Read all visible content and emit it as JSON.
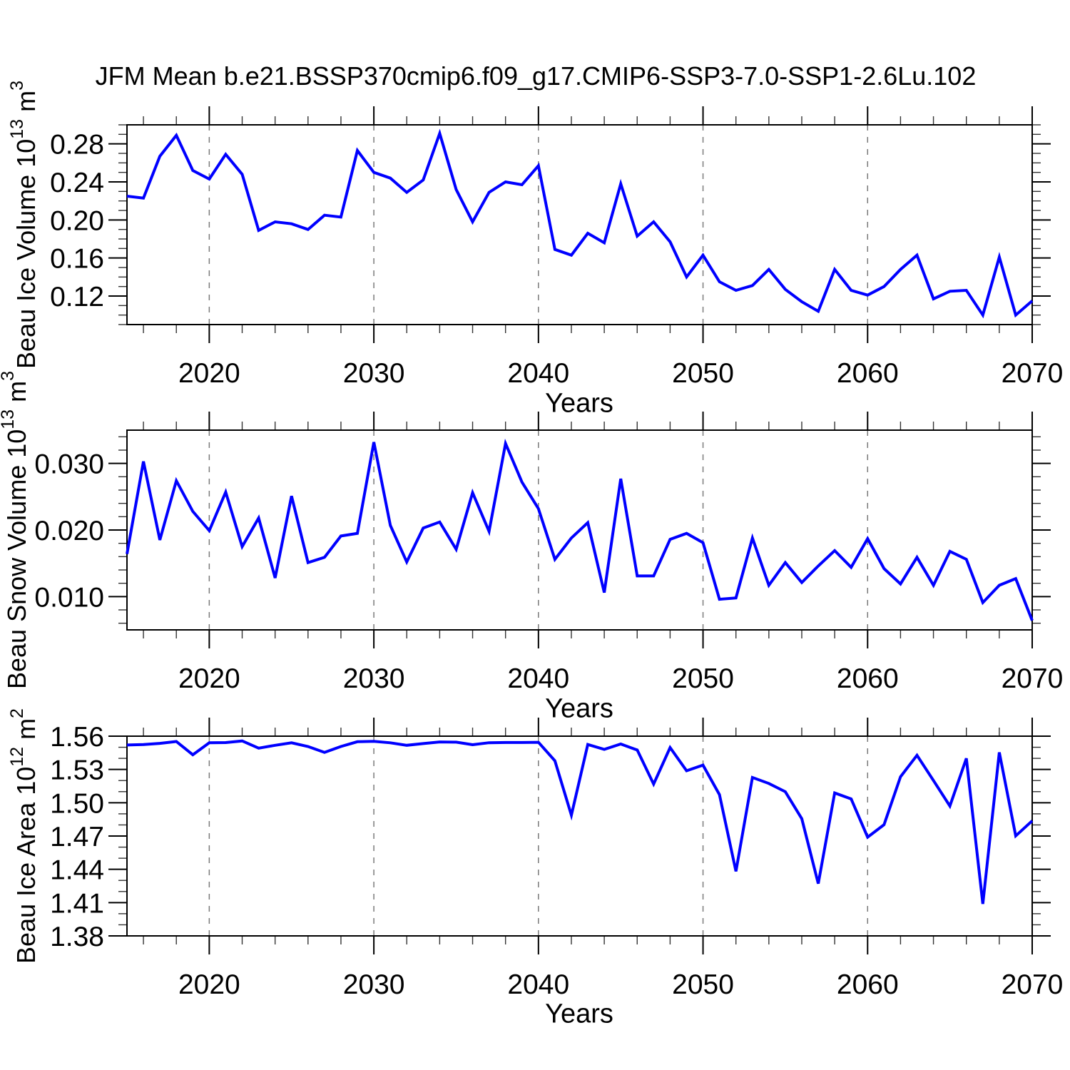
{
  "style": {
    "background": "#ffffff",
    "line_color": "#0000ff",
    "grid_color": "#7a7a7a",
    "axis_color": "#000000"
  },
  "chart_data": {
    "type": "line",
    "title": "JFM Mean b.e21.BSSP370cmip6.f09_g17.CMIP6-SSP3-7.0-SSP1-2.6Lu.102",
    "xlabel": "Years",
    "legend": null,
    "grid": "dashed vertical gridlines at decades",
    "x": [
      2015,
      2016,
      2017,
      2018,
      2019,
      2020,
      2021,
      2022,
      2023,
      2024,
      2025,
      2026,
      2027,
      2028,
      2029,
      2030,
      2031,
      2032,
      2033,
      2034,
      2035,
      2036,
      2037,
      2038,
      2039,
      2040,
      2041,
      2042,
      2043,
      2044,
      2045,
      2046,
      2047,
      2048,
      2049,
      2050,
      2051,
      2052,
      2053,
      2054,
      2055,
      2056,
      2057,
      2058,
      2059,
      2060,
      2061,
      2062,
      2063,
      2064,
      2065,
      2066,
      2067,
      2068,
      2069,
      2070
    ],
    "x_range": [
      2015,
      2070
    ],
    "x_major_ticks": [
      2020,
      2030,
      2040,
      2050,
      2060,
      2070
    ],
    "x_tick_labels": [
      "2020",
      "2030",
      "2040",
      "2050",
      "2060",
      "2070"
    ],
    "x_minor_step": 2,
    "grid_x": [
      2020,
      2030,
      2040,
      2050,
      2060
    ],
    "subplots": [
      {
        "id": "beau-ice-volume",
        "ylabel": "Beau Ice Volume 10^13 m^3",
        "ylabel_parts": {
          "base": "Beau Ice Volume 10",
          "exp": "13",
          "unit": " m",
          "unit_exp": "3"
        },
        "ylim": [
          0.09,
          0.3
        ],
        "y_major_ticks": [
          0.12,
          0.16,
          0.2,
          0.24,
          0.28
        ],
        "y_tick_labels": [
          "0.12",
          "0.16",
          "0.20",
          "0.24",
          "0.28"
        ],
        "y_minor_step": 0.01,
        "values": [
          0.225,
          0.223,
          0.267,
          0.289,
          0.252,
          0.243,
          0.269,
          0.248,
          0.189,
          0.198,
          0.196,
          0.19,
          0.205,
          0.203,
          0.273,
          0.25,
          0.244,
          0.229,
          0.242,
          0.291,
          0.232,
          0.198,
          0.229,
          0.24,
          0.237,
          0.257,
          0.169,
          0.163,
          0.186,
          0.176,
          0.238,
          0.183,
          0.198,
          0.177,
          0.14,
          0.163,
          0.135,
          0.126,
          0.131,
          0.148,
          0.127,
          0.114,
          0.104,
          0.148,
          0.126,
          0.121,
          0.13,
          0.148,
          0.163,
          0.117,
          0.125,
          0.126,
          0.1,
          0.161,
          0.1,
          0.115
        ]
      },
      {
        "id": "beau-snow-volume",
        "ylabel": "Beau Snow Volume 10^13 m^3",
        "ylabel_parts": {
          "base": "Beau Snow Volume 10",
          "exp": "13",
          "unit": " m",
          "unit_exp": "3"
        },
        "ylim": [
          0.005,
          0.035
        ],
        "y_major_ticks": [
          0.01,
          0.02,
          0.03
        ],
        "y_tick_labels": [
          "0.010",
          "0.020",
          "0.030"
        ],
        "y_minor_step": 0.002,
        "values": [
          0.0164,
          0.0303,
          0.0185,
          0.0274,
          0.0228,
          0.0199,
          0.0257,
          0.0175,
          0.0218,
          0.0128,
          0.0251,
          0.0151,
          0.0159,
          0.0191,
          0.0195,
          0.0332,
          0.0207,
          0.0152,
          0.0203,
          0.0212,
          0.0171,
          0.0256,
          0.0198,
          0.033,
          0.0272,
          0.0232,
          0.0156,
          0.0188,
          0.0211,
          0.0106,
          0.0277,
          0.0131,
          0.0131,
          0.0186,
          0.0195,
          0.0181,
          0.0096,
          0.0098,
          0.0188,
          0.0117,
          0.0151,
          0.0121,
          0.0146,
          0.0169,
          0.0144,
          0.0187,
          0.0142,
          0.0119,
          0.0159,
          0.0117,
          0.0168,
          0.0156,
          0.0091,
          0.0117,
          0.0127,
          0.0064
        ]
      },
      {
        "id": "beau-ice-area",
        "ylabel": "Beau Ice Area 10^12 m^2",
        "ylabel_parts": {
          "base": "Beau Ice Area 10",
          "exp": "12",
          "unit": " m",
          "unit_exp": "2"
        },
        "ylim": [
          1.38,
          1.56
        ],
        "y_major_ticks": [
          1.38,
          1.41,
          1.44,
          1.47,
          1.5,
          1.53,
          1.56
        ],
        "y_tick_labels": [
          "1.38",
          "1.41",
          "1.44",
          "1.47",
          "1.50",
          "1.53",
          "1.56"
        ],
        "y_minor_step": 0.01,
        "values": [
          1.552,
          1.5525,
          1.5535,
          1.5552,
          1.5432,
          1.554,
          1.5542,
          1.5557,
          1.5492,
          1.5518,
          1.554,
          1.5507,
          1.5454,
          1.5507,
          1.555,
          1.5554,
          1.554,
          1.5518,
          1.5533,
          1.5548,
          1.5546,
          1.5523,
          1.5541,
          1.5543,
          1.5543,
          1.5545,
          1.5378,
          1.4888,
          1.5525,
          1.5481,
          1.5529,
          1.5475,
          1.5168,
          1.5497,
          1.5288,
          1.5339,
          1.5073,
          1.4382,
          1.5228,
          1.5174,
          1.5099,
          1.4856,
          1.4271,
          1.5088,
          1.5034,
          1.469,
          1.4802,
          1.5234,
          1.5428,
          1.52,
          1.497,
          1.54,
          1.4088,
          1.5454,
          1.4701,
          1.4837
        ]
      }
    ]
  }
}
